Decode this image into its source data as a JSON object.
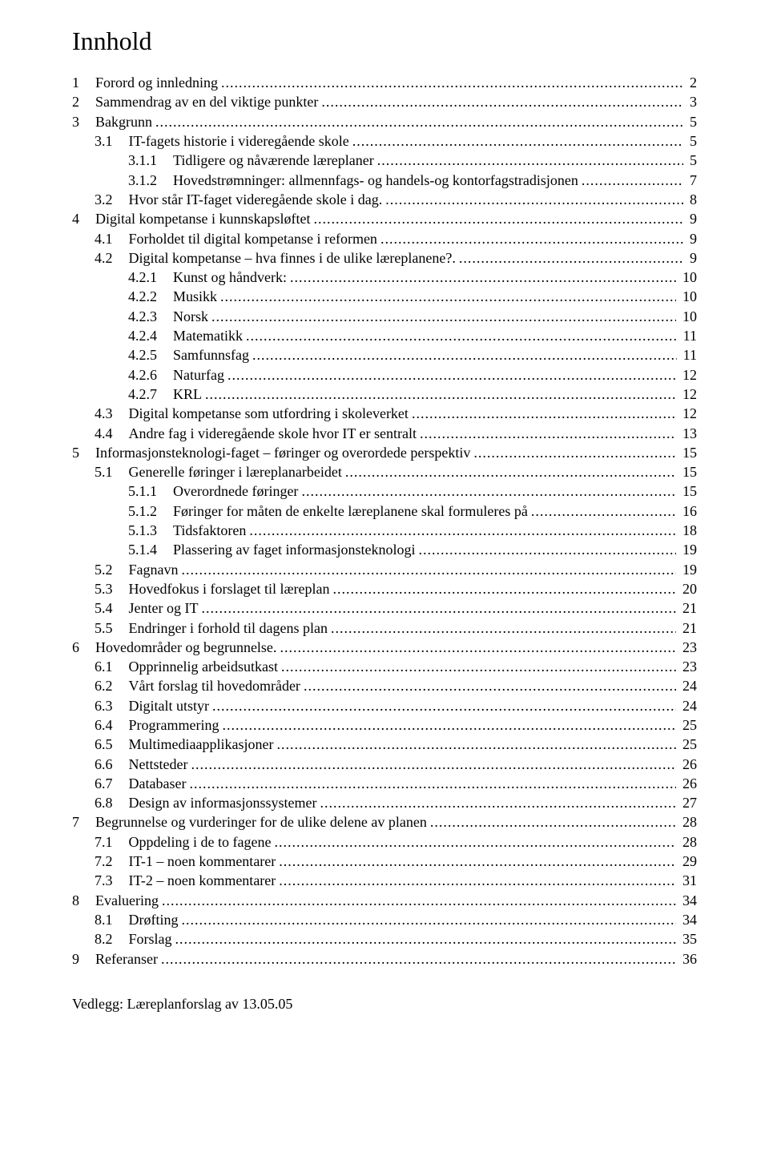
{
  "title": "Innhold",
  "appendix": "Vedlegg: Læreplanforslag av 13.05.05",
  "toc": [
    {
      "level": 0,
      "num": "1",
      "text": "Forord og innledning",
      "page": "2"
    },
    {
      "level": 0,
      "num": "2",
      "text": "Sammendrag av en del viktige punkter",
      "page": "3"
    },
    {
      "level": 0,
      "num": "3",
      "text": "Bakgrunn",
      "page": "5"
    },
    {
      "level": 1,
      "num": "3.1",
      "text": "IT-fagets historie i videregående skole",
      "page": "5"
    },
    {
      "level": 2,
      "num": "3.1.1",
      "text": "Tidligere og nåværende læreplaner",
      "page": "5"
    },
    {
      "level": 2,
      "num": "3.1.2",
      "text": "Hovedstrømninger: allmennfags- og handels-og kontorfagstradisjonen",
      "page": "7"
    },
    {
      "level": 1,
      "num": "3.2",
      "text": "Hvor står IT-faget videregående skole i dag.",
      "page": "8"
    },
    {
      "level": 0,
      "num": "4",
      "text": "Digital kompetanse i kunnskapsløftet",
      "page": "9"
    },
    {
      "level": 1,
      "num": "4.1",
      "text": "Forholdet til digital kompetanse i reformen",
      "page": "9"
    },
    {
      "level": 1,
      "num": "4.2",
      "text": "Digital kompetanse – hva finnes i de ulike læreplanene?.",
      "page": "9"
    },
    {
      "level": 2,
      "num": "4.2.1",
      "text": "Kunst og håndverk:",
      "page": "10"
    },
    {
      "level": 2,
      "num": "4.2.2",
      "text": "Musikk",
      "page": "10"
    },
    {
      "level": 2,
      "num": "4.2.3",
      "text": "Norsk",
      "page": "10"
    },
    {
      "level": 2,
      "num": "4.2.4",
      "text": "Matematikk",
      "page": "11"
    },
    {
      "level": 2,
      "num": "4.2.5",
      "text": "Samfunnsfag",
      "page": "11"
    },
    {
      "level": 2,
      "num": "4.2.6",
      "text": "Naturfag",
      "page": "12"
    },
    {
      "level": 2,
      "num": "4.2.7",
      "text": "KRL",
      "page": "12"
    },
    {
      "level": 1,
      "num": "4.3",
      "text": "Digital kompetanse som utfordring i skoleverket",
      "page": "12"
    },
    {
      "level": 1,
      "num": "4.4",
      "text": "Andre fag i videregående skole hvor IT er sentralt",
      "page": "13"
    },
    {
      "level": 0,
      "num": "5",
      "text": "Informasjonsteknologi-faget – føringer og overordede perspektiv",
      "page": "15"
    },
    {
      "level": 1,
      "num": "5.1",
      "text": "Generelle føringer i læreplanarbeidet",
      "page": "15"
    },
    {
      "level": 2,
      "num": "5.1.1",
      "text": "Overordnede føringer",
      "page": "15"
    },
    {
      "level": 2,
      "num": "5.1.2",
      "text": "Føringer for måten de enkelte læreplanene skal formuleres på",
      "page": "16"
    },
    {
      "level": 2,
      "num": "5.1.3",
      "text": "Tidsfaktoren",
      "page": "18"
    },
    {
      "level": 2,
      "num": "5.1.4",
      "text": "Plassering av faget informasjonsteknologi",
      "page": "19"
    },
    {
      "level": 1,
      "num": "5.2",
      "text": "Fagnavn",
      "page": "19"
    },
    {
      "level": 1,
      "num": "5.3",
      "text": "Hovedfokus i forslaget til læreplan",
      "page": "20"
    },
    {
      "level": 1,
      "num": "5.4",
      "text": "Jenter og IT",
      "page": "21"
    },
    {
      "level": 1,
      "num": "5.5",
      "text": "Endringer i forhold til dagens plan",
      "page": "21"
    },
    {
      "level": 0,
      "num": "6",
      "text": "Hovedområder og begrunnelse.",
      "page": "23"
    },
    {
      "level": 1,
      "num": "6.1",
      "text": "Opprinnelig arbeidsutkast",
      "page": "23"
    },
    {
      "level": 1,
      "num": "6.2",
      "text": "Vårt forslag til hovedområder",
      "page": "24"
    },
    {
      "level": 1,
      "num": "6.3",
      "text": "Digitalt utstyr",
      "page": "24"
    },
    {
      "level": 1,
      "num": "6.4",
      "text": "Programmering",
      "page": "25"
    },
    {
      "level": 1,
      "num": "6.5",
      "text": "Multimediaapplikasjoner",
      "page": "25"
    },
    {
      "level": 1,
      "num": "6.6",
      "text": "Nettsteder",
      "page": "26"
    },
    {
      "level": 1,
      "num": "6.7",
      "text": "Databaser",
      "page": "26"
    },
    {
      "level": 1,
      "num": "6.8",
      "text": "Design av informasjonssystemer",
      "page": "27"
    },
    {
      "level": 0,
      "num": "7",
      "text": "Begrunnelse og vurderinger for de ulike delene av planen",
      "page": "28"
    },
    {
      "level": 1,
      "num": "7.1",
      "text": "Oppdeling i de to fagene",
      "page": "28"
    },
    {
      "level": 1,
      "num": "7.2",
      "text": "IT-1 – noen kommentarer",
      "page": "29"
    },
    {
      "level": 1,
      "num": "7.3",
      "text": "IT-2 – noen kommentarer",
      "page": "31"
    },
    {
      "level": 0,
      "num": "8",
      "text": "Evaluering",
      "page": "34"
    },
    {
      "level": 1,
      "num": "8.1",
      "text": "Drøfting",
      "page": "34"
    },
    {
      "level": 1,
      "num": "8.2",
      "text": "Forslag",
      "page": "35"
    },
    {
      "level": 0,
      "num": "9",
      "text": "Referanser",
      "page": "36"
    }
  ]
}
